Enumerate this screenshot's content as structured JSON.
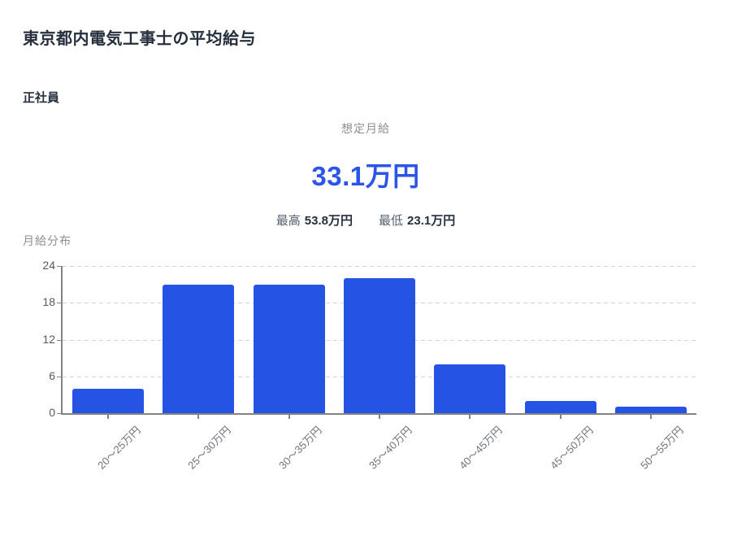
{
  "page": {
    "title": "東京都内電気工事士の平均給与",
    "employment_type": "正社員"
  },
  "summary": {
    "label": "想定月給",
    "value": "33.1万円",
    "max_label": "最高",
    "max_value": "53.8万円",
    "min_label": "最低",
    "min_value": "23.1万円"
  },
  "chart_data": {
    "type": "bar",
    "title": "月給分布",
    "categories": [
      "20〜25万円",
      "25〜30万円",
      "30〜35万円",
      "35〜40万円",
      "40〜45万円",
      "45〜50万円",
      "50〜55万円"
    ],
    "values": [
      4,
      21,
      21,
      22,
      8,
      2,
      1
    ],
    "xlabel": "",
    "ylabel": "",
    "ylim": [
      0,
      24
    ],
    "yticks": [
      0,
      6,
      12,
      18,
      24
    ],
    "grid": "horizontal-dashed",
    "legend": "none",
    "bar_color": "#2553e4"
  },
  "colors": {
    "accent_blue": "#2553e4",
    "value_blue": "#2b55e8",
    "heading_navy": "#252f3e",
    "muted_gray": "#8a9097",
    "axis_gray": "#848484",
    "grid_gray": "#d4d4d4",
    "ytick_text": "#55595f",
    "xtick_text": "#6e737a"
  }
}
